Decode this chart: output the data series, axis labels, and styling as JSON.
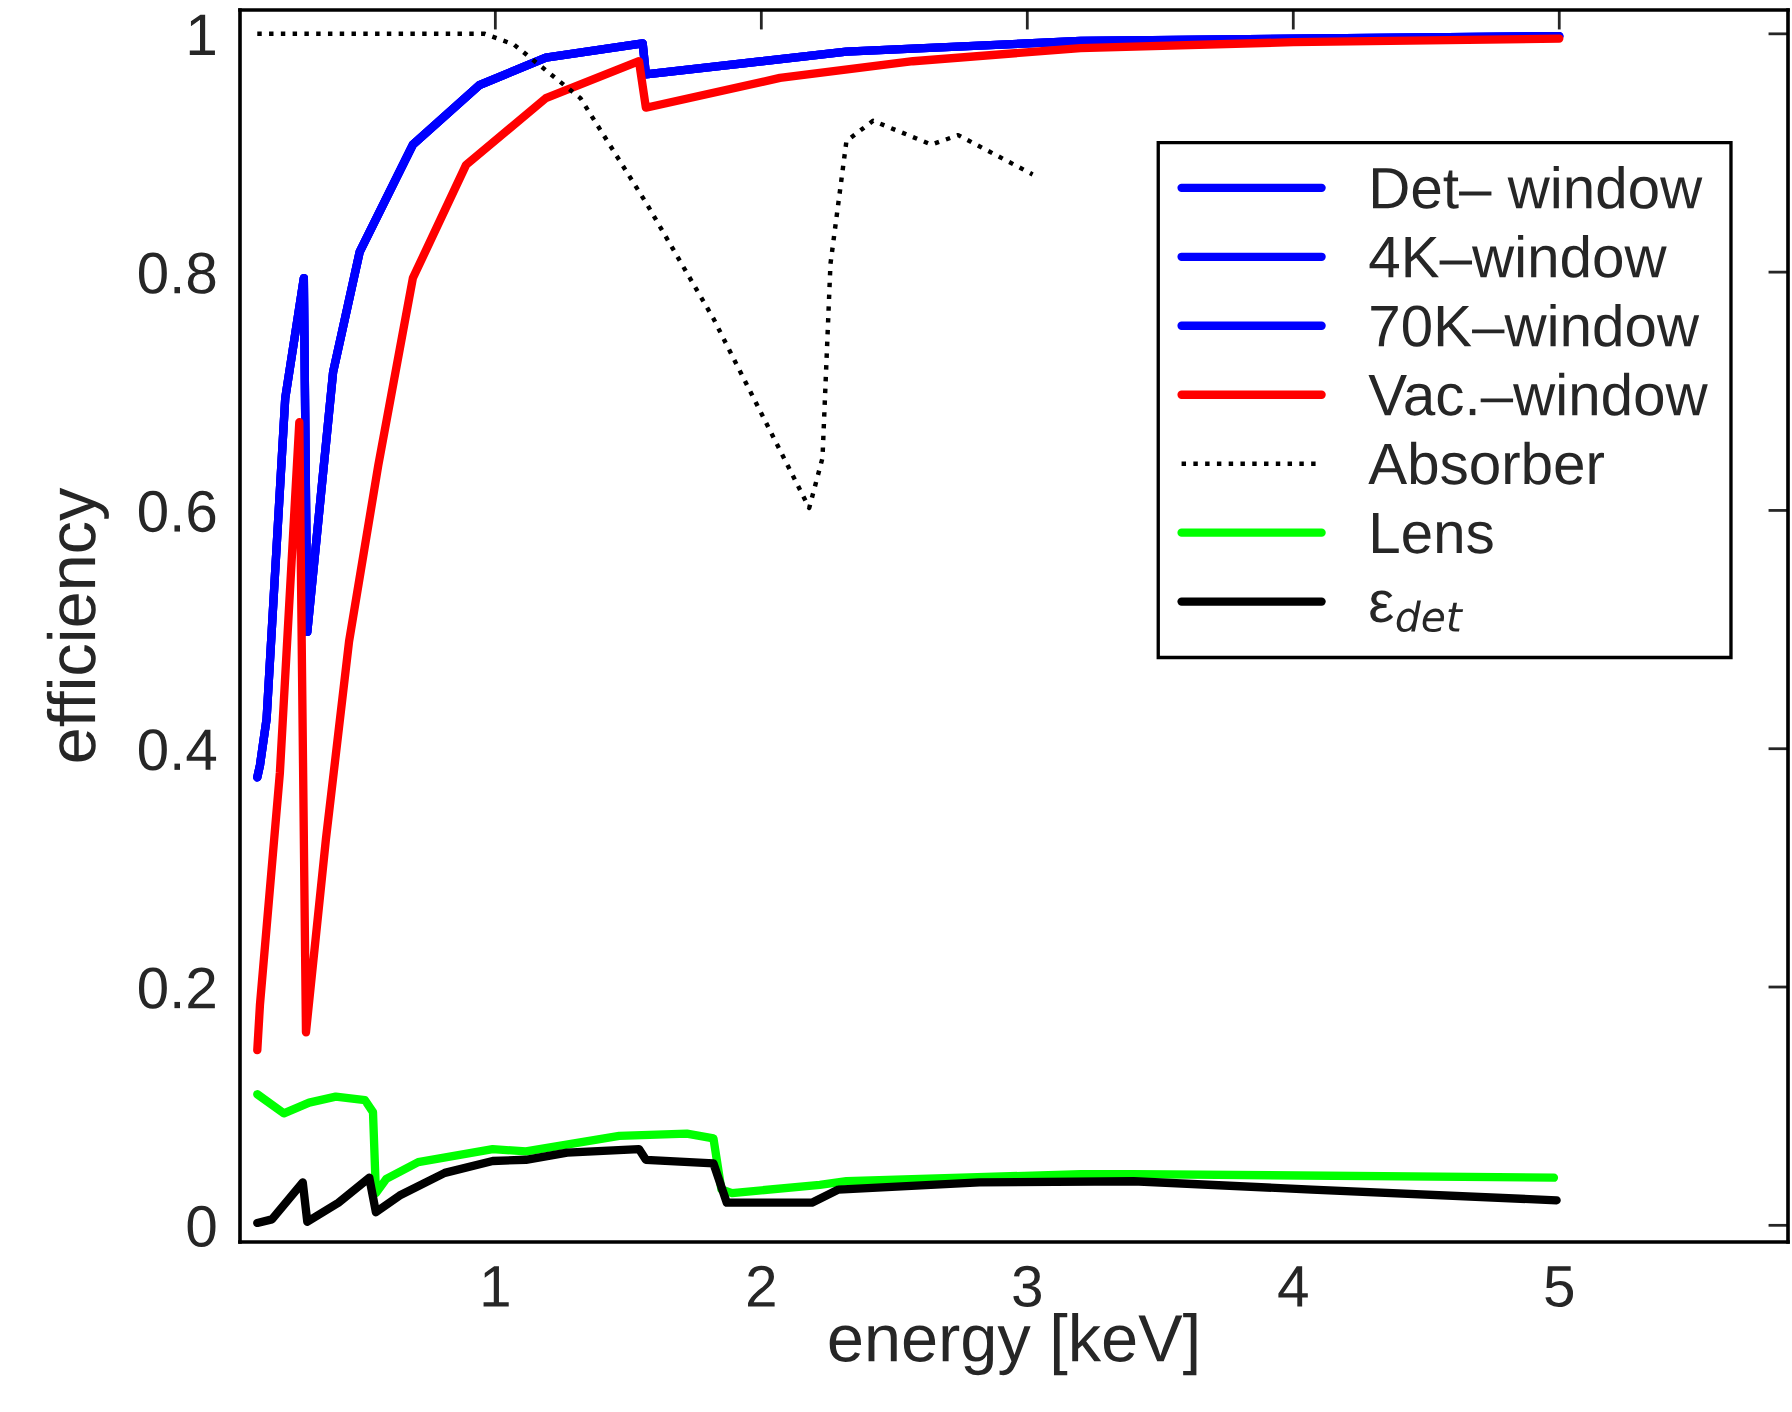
{
  "chart_data": {
    "type": "line",
    "xlabel": "energy [keV]",
    "ylabel": "efficiency",
    "xlim": [
      0.04,
      5.86
    ],
    "ylim": [
      -0.014,
      1.02
    ],
    "xticks": [
      1,
      2,
      3,
      4,
      5
    ],
    "yticks": [
      0,
      0.2,
      0.4,
      0.6,
      0.8,
      1
    ],
    "grid": false,
    "legend": "top right",
    "marker": "none",
    "series": [
      {
        "name": "Det– window",
        "color": "#0000ff",
        "line_style": "solid",
        "x": [
          0.105,
          0.115,
          0.14,
          0.21,
          0.28,
          0.293,
          0.39,
          0.49,
          0.69,
          0.94,
          1.19,
          1.554,
          1.566,
          2.32,
          3.2,
          4.0,
          5.0
        ],
        "values": [
          0.376,
          0.386,
          0.425,
          0.694,
          0.795,
          0.498,
          0.716,
          0.817,
          0.907,
          0.957,
          0.98,
          0.992,
          0.966,
          0.985,
          0.994,
          0.996,
          0.998
        ]
      },
      {
        "name": "4K–window",
        "color": "#0000ff",
        "line_style": "solid",
        "x": [
          0.105,
          0.115,
          0.14,
          0.21,
          0.28,
          0.293,
          0.39,
          0.49,
          0.69,
          0.94,
          1.19,
          1.554,
          1.566,
          2.32,
          3.2,
          4.0,
          5.0
        ],
        "values": [
          0.376,
          0.386,
          0.425,
          0.694,
          0.795,
          0.498,
          0.716,
          0.817,
          0.907,
          0.957,
          0.98,
          0.992,
          0.966,
          0.985,
          0.994,
          0.996,
          0.998
        ]
      },
      {
        "name": "70K–window",
        "color": "#0000ff",
        "line_style": "solid",
        "x": [
          0.105,
          0.115,
          0.14,
          0.21,
          0.28,
          0.293,
          0.39,
          0.49,
          0.69,
          0.94,
          1.19,
          1.554,
          1.566,
          2.32,
          3.2,
          4.0,
          5.0
        ],
        "values": [
          0.376,
          0.386,
          0.425,
          0.694,
          0.795,
          0.498,
          0.716,
          0.817,
          0.907,
          0.957,
          0.98,
          0.992,
          0.966,
          0.985,
          0.994,
          0.996,
          0.998
        ]
      },
      {
        "name": "Vac.–window",
        "color": "#ff0000",
        "line_style": "solid",
        "x": [
          0.105,
          0.115,
          0.19,
          0.263,
          0.288,
          0.363,
          0.45,
          0.56,
          0.69,
          0.89,
          1.19,
          1.54,
          1.566,
          2.07,
          2.57,
          3.2,
          4.0,
          5.0
        ],
        "values": [
          0.147,
          0.185,
          0.38,
          0.674,
          0.162,
          0.324,
          0.49,
          0.638,
          0.795,
          0.89,
          0.946,
          0.977,
          0.938,
          0.963,
          0.977,
          0.988,
          0.993,
          0.996
        ]
      },
      {
        "name": "Absorber",
        "color": "#000000",
        "line_style": "dotted",
        "x": [
          0.105,
          0.5,
          0.96,
          1.07,
          1.32,
          1.57,
          1.82,
          2.18,
          2.23,
          2.26,
          2.32,
          2.42,
          2.64,
          2.74,
          3.02
        ],
        "values": [
          1.0,
          1.0,
          1.0,
          0.991,
          0.946,
          0.857,
          0.761,
          0.602,
          0.644,
          0.807,
          0.91,
          0.927,
          0.907,
          0.915,
          0.882
        ]
      },
      {
        "name": "Lens",
        "color": "#00ff00",
        "line_style": "solid",
        "x": [
          0.105,
          0.205,
          0.3,
          0.4,
          0.51,
          0.54,
          0.551,
          0.59,
          0.71,
          0.99,
          1.115,
          1.466,
          1.72,
          1.82,
          1.85,
          1.89,
          2.22,
          2.32,
          3.2,
          3.4,
          4.98
        ],
        "values": [
          0.11,
          0.094,
          0.103,
          0.108,
          0.105,
          0.095,
          0.027,
          0.039,
          0.053,
          0.064,
          0.062,
          0.075,
          0.077,
          0.073,
          0.03,
          0.027,
          0.034,
          0.037,
          0.043,
          0.043,
          0.04
        ]
      },
      {
        "name": "ε$_{det}$",
        "color": "#000000",
        "line_style": "solid",
        "x": [
          0.105,
          0.16,
          0.276,
          0.293,
          0.41,
          0.526,
          0.551,
          0.64,
          0.81,
          0.99,
          1.115,
          1.27,
          1.54,
          1.566,
          1.82,
          1.87,
          2.19,
          2.29,
          2.82,
          3.4,
          4.07,
          4.99
        ],
        "values": [
          0.002,
          0.005,
          0.036,
          0.003,
          0.019,
          0.04,
          0.011,
          0.025,
          0.044,
          0.054,
          0.055,
          0.061,
          0.064,
          0.055,
          0.052,
          0.019,
          0.019,
          0.03,
          0.036,
          0.037,
          0.03,
          0.021
        ]
      }
    ]
  }
}
